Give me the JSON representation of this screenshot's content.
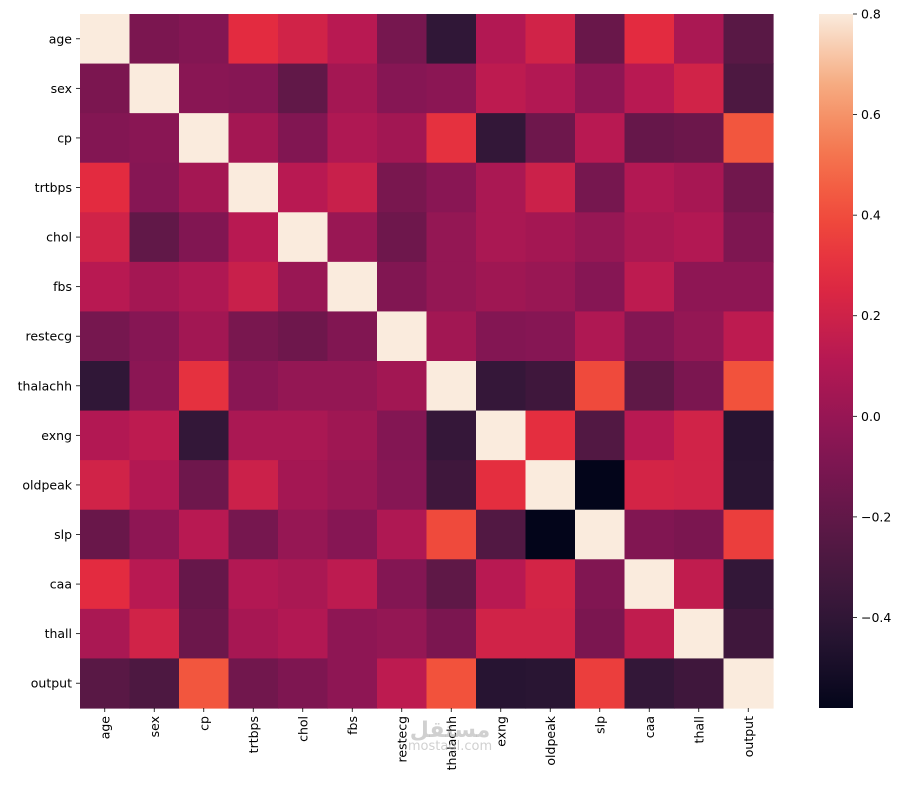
{
  "chart_data": {
    "type": "heatmap",
    "title": "",
    "xlabel": "",
    "ylabel": "",
    "variables": [
      "age",
      "sex",
      "cp",
      "trtbps",
      "chol",
      "fbs",
      "restecg",
      "thalachh",
      "exng",
      "oldpeak",
      "slp",
      "caa",
      "thall",
      "output"
    ],
    "matrix": [
      [
        1.0,
        -0.1,
        -0.07,
        0.28,
        0.21,
        0.12,
        -0.12,
        -0.4,
        0.1,
        0.21,
        -0.17,
        0.28,
        0.07,
        -0.23
      ],
      [
        -0.1,
        1.0,
        -0.05,
        -0.06,
        -0.2,
        0.05,
        -0.06,
        -0.04,
        0.14,
        0.1,
        -0.03,
        0.12,
        0.21,
        -0.28
      ],
      [
        -0.07,
        -0.05,
        1.0,
        0.05,
        -0.08,
        0.09,
        0.04,
        0.3,
        -0.39,
        -0.15,
        0.12,
        -0.18,
        -0.16,
        0.43
      ],
      [
        0.28,
        -0.06,
        0.05,
        1.0,
        0.12,
        0.18,
        -0.11,
        -0.05,
        0.07,
        0.19,
        -0.12,
        0.1,
        0.06,
        -0.14
      ],
      [
        0.21,
        -0.2,
        -0.08,
        0.12,
        1.0,
        0.01,
        -0.15,
        -0.01,
        0.07,
        0.05,
        0.0,
        0.07,
        0.1,
        -0.09
      ],
      [
        0.12,
        0.05,
        0.09,
        0.18,
        0.01,
        1.0,
        -0.08,
        -0.01,
        0.03,
        0.01,
        -0.06,
        0.14,
        -0.03,
        -0.03
      ],
      [
        -0.12,
        -0.06,
        0.04,
        -0.11,
        -0.15,
        -0.08,
        1.0,
        0.04,
        -0.07,
        -0.06,
        0.09,
        -0.07,
        -0.01,
        0.14
      ],
      [
        -0.4,
        -0.04,
        0.3,
        -0.05,
        -0.01,
        -0.01,
        0.04,
        1.0,
        -0.38,
        -0.34,
        0.39,
        -0.21,
        -0.1,
        0.42
      ],
      [
        0.1,
        0.14,
        -0.39,
        0.07,
        0.07,
        0.03,
        -0.07,
        -0.38,
        1.0,
        0.29,
        -0.26,
        0.12,
        0.21,
        -0.44
      ],
      [
        0.21,
        0.1,
        -0.15,
        0.19,
        0.05,
        0.01,
        -0.06,
        -0.34,
        0.29,
        1.0,
        -0.58,
        0.22,
        0.21,
        -0.43
      ],
      [
        -0.17,
        -0.03,
        0.12,
        -0.12,
        0.0,
        -0.06,
        0.09,
        0.39,
        -0.26,
        -0.58,
        1.0,
        -0.08,
        -0.1,
        0.35
      ],
      [
        0.28,
        0.12,
        -0.18,
        0.1,
        0.07,
        0.14,
        -0.07,
        -0.21,
        0.12,
        0.22,
        -0.08,
        1.0,
        0.15,
        -0.39
      ],
      [
        0.07,
        0.21,
        -0.16,
        0.06,
        0.1,
        -0.03,
        -0.01,
        -0.1,
        0.21,
        0.21,
        -0.1,
        0.15,
        1.0,
        -0.34
      ],
      [
        -0.23,
        -0.28,
        0.43,
        -0.14,
        -0.09,
        -0.03,
        0.14,
        0.42,
        -0.44,
        -0.43,
        0.35,
        -0.39,
        -0.34,
        1.0
      ]
    ],
    "vmin": -0.58,
    "vmax": 0.8,
    "colormap": "rocket",
    "colorbar": {
      "ticks": [
        -0.4,
        -0.2,
        0.0,
        0.2,
        0.4,
        0.6,
        0.8
      ],
      "tick_labels": [
        "−0.4",
        "−0.2",
        "0.0",
        "0.2",
        "0.4",
        "0.6",
        "0.8"
      ],
      "placement": "right"
    },
    "grid": false
  },
  "watermark": {
    "main": "مستقل",
    "sub": "mostaql.com"
  }
}
